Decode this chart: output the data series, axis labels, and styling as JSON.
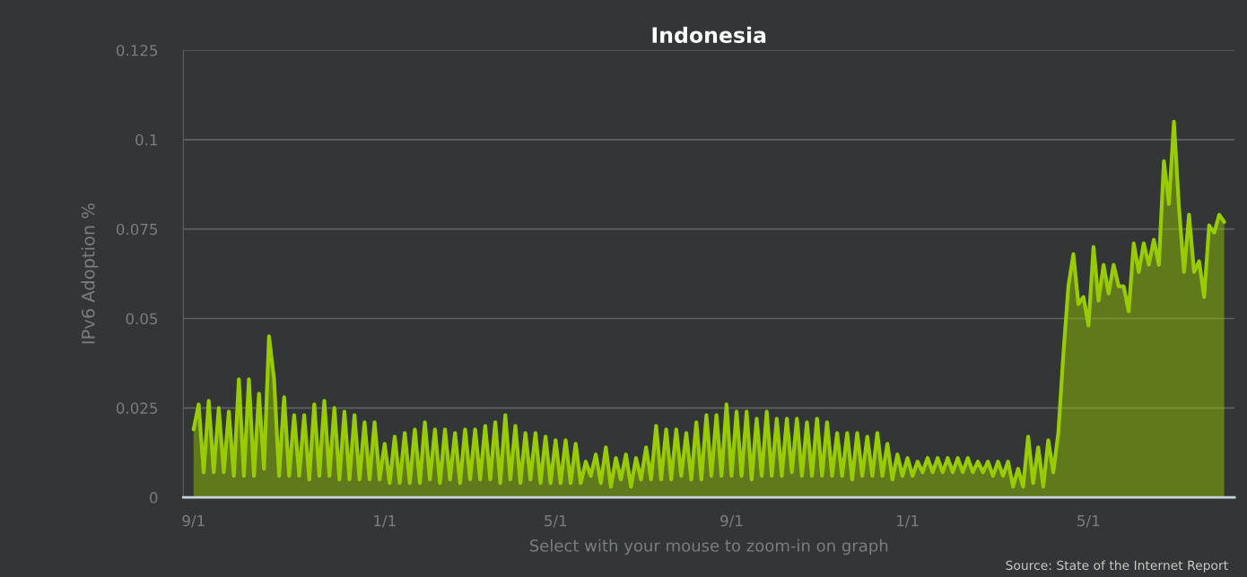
{
  "chart_data": {
    "type": "area",
    "title": "Indonesia",
    "ylabel": "IPv6 Adoption %",
    "xlabel": "Select with your mouse to zoom-in on graph",
    "annotations": [
      "Source: State of the Internet Report"
    ],
    "categories": [
      "9/1",
      null,
      null,
      null,
      null,
      null,
      null,
      null,
      null,
      null,
      null,
      null,
      null,
      null,
      null,
      null,
      null,
      null,
      null,
      null,
      null,
      null,
      null,
      null,
      null,
      null,
      null,
      null,
      null,
      null,
      null,
      null,
      null,
      null,
      null,
      null,
      null,
      null,
      "1/1",
      null,
      null,
      null,
      null,
      null,
      null,
      null,
      null,
      null,
      null,
      null,
      null,
      null,
      null,
      null,
      null,
      null,
      null,
      null,
      null,
      null,
      null,
      null,
      null,
      null,
      null,
      null,
      null,
      null,
      null,
      null,
      null,
      null,
      "5/1",
      null,
      null,
      null,
      null,
      null,
      null,
      null,
      null,
      null,
      null,
      null,
      null,
      null,
      null,
      null,
      null,
      null,
      null,
      null,
      null,
      null,
      null,
      null,
      null,
      null,
      null,
      null,
      null,
      null,
      null,
      null,
      null,
      null,
      null,
      "9/1",
      null,
      null,
      null,
      null,
      null,
      null,
      null,
      null,
      null,
      null,
      null,
      null,
      null,
      null,
      null,
      null,
      null,
      null,
      null,
      null,
      null,
      null,
      null,
      null,
      null,
      null,
      null,
      null,
      null,
      null,
      null,
      null,
      null,
      null,
      "1/1",
      null,
      null,
      null,
      null,
      null,
      null,
      null,
      null,
      null,
      null,
      null,
      null,
      null,
      null,
      null,
      null,
      null,
      null,
      null,
      null,
      null,
      null,
      null,
      null,
      null,
      null,
      null,
      null,
      null,
      null,
      null,
      null,
      null,
      null,
      null,
      "5/1",
      null,
      null,
      null,
      null,
      null,
      null,
      null,
      null,
      null,
      null,
      null,
      null,
      null,
      null,
      null,
      null,
      null,
      null,
      null,
      null,
      null,
      null,
      null,
      null,
      null,
      null,
      null
    ],
    "series": [
      {
        "color": "#99cc00",
        "values": [
          0.019,
          0.026,
          0.007,
          0.027,
          0.007,
          0.025,
          0.007,
          0.024,
          0.006,
          0.033,
          0.006,
          0.033,
          0.006,
          0.029,
          0.008,
          0.045,
          0.033,
          0.006,
          0.028,
          0.006,
          0.023,
          0.006,
          0.023,
          0.005,
          0.026,
          0.006,
          0.027,
          0.006,
          0.025,
          0.005,
          0.024,
          0.005,
          0.023,
          0.005,
          0.021,
          0.005,
          0.021,
          0.005,
          0.015,
          0.004,
          0.017,
          0.004,
          0.018,
          0.004,
          0.019,
          0.004,
          0.021,
          0.005,
          0.019,
          0.004,
          0.019,
          0.005,
          0.018,
          0.004,
          0.019,
          0.005,
          0.019,
          0.005,
          0.02,
          0.005,
          0.021,
          0.004,
          0.023,
          0.005,
          0.02,
          0.004,
          0.018,
          0.005,
          0.018,
          0.004,
          0.017,
          0.004,
          0.016,
          0.004,
          0.016,
          0.004,
          0.015,
          0.004,
          0.01,
          0.006,
          0.012,
          0.004,
          0.014,
          0.003,
          0.011,
          0.005,
          0.012,
          0.003,
          0.011,
          0.005,
          0.014,
          0.005,
          0.02,
          0.005,
          0.019,
          0.005,
          0.019,
          0.006,
          0.018,
          0.005,
          0.021,
          0.005,
          0.023,
          0.006,
          0.023,
          0.006,
          0.026,
          0.006,
          0.024,
          0.006,
          0.024,
          0.005,
          0.022,
          0.006,
          0.024,
          0.006,
          0.022,
          0.006,
          0.022,
          0.007,
          0.022,
          0.006,
          0.021,
          0.006,
          0.022,
          0.006,
          0.021,
          0.006,
          0.018,
          0.006,
          0.018,
          0.005,
          0.018,
          0.006,
          0.017,
          0.006,
          0.018,
          0.006,
          0.015,
          0.005,
          0.012,
          0.006,
          0.011,
          0.006,
          0.01,
          0.007,
          0.011,
          0.007,
          0.011,
          0.007,
          0.011,
          0.007,
          0.011,
          0.007,
          0.011,
          0.007,
          0.01,
          0.007,
          0.01,
          0.006,
          0.01,
          0.006,
          0.01,
          0.003,
          0.008,
          0.003,
          0.017,
          0.004,
          0.014,
          0.003,
          0.016,
          0.007,
          0.018,
          0.04,
          0.059,
          0.068,
          0.054,
          0.056,
          0.048,
          0.07,
          0.055,
          0.065,
          0.057,
          0.065,
          0.059,
          0.059,
          0.052,
          0.071,
          0.063,
          0.071,
          0.065,
          0.072,
          0.065,
          0.094,
          0.082,
          0.105,
          0.081,
          0.063,
          0.079,
          0.063,
          0.066,
          0.056,
          0.076,
          0.074,
          0.079,
          0.077
        ]
      }
    ],
    "ylim": [
      0,
      0.125
    ],
    "yticks": [
      0,
      0.025,
      0.05,
      0.075,
      0.1,
      0.125
    ],
    "grid": "y"
  }
}
